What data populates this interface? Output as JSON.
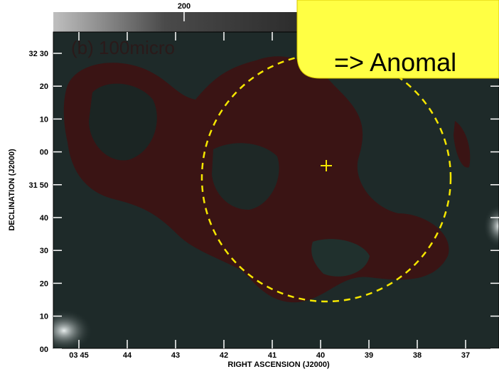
{
  "colorbar": {
    "label": "200"
  },
  "panel_label": "(b) 100micro",
  "callout": {
    "text": "=> Anomal"
  },
  "y_axis": {
    "title": "DECLINATION (J2000)",
    "ticks": [
      "32 30",
      "20",
      "10",
      "00",
      "31 50",
      "40",
      "30",
      "20",
      "10",
      "00"
    ]
  },
  "x_axis": {
    "title": "RIGHT ASCENSION (J2000)",
    "ticks": [
      "03 45",
      "44",
      "43",
      "42",
      "41",
      "40",
      "39",
      "38",
      "37"
    ]
  }
}
